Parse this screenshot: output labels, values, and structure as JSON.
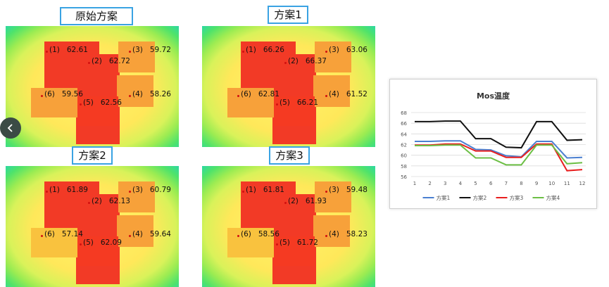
{
  "panels": [
    {
      "title": "原始方案",
      "labels": [
        {
          "id": "(1)",
          "value": "62.61"
        },
        {
          "id": "(2)",
          "value": "62.72"
        },
        {
          "id": "(3)",
          "value": "59.72"
        },
        {
          "id": "(4)",
          "value": "58.26"
        },
        {
          "id": "(5)",
          "value": "62.56"
        },
        {
          "id": "(6)",
          "value": "59.56"
        }
      ]
    },
    {
      "title": "方案1",
      "labels": [
        {
          "id": "(1)",
          "value": "66.26"
        },
        {
          "id": "(2)",
          "value": "66.37"
        },
        {
          "id": "(3)",
          "value": "63.06"
        },
        {
          "id": "(4)",
          "value": "61.52"
        },
        {
          "id": "(5)",
          "value": "66.21"
        },
        {
          "id": "(6)",
          "value": "62.81"
        }
      ]
    },
    {
      "title": "方案2",
      "labels": [
        {
          "id": "(1)",
          "value": "61.89"
        },
        {
          "id": "(2)",
          "value": "62.13"
        },
        {
          "id": "(3)",
          "value": "60.79"
        },
        {
          "id": "(4)",
          "value": "59.64"
        },
        {
          "id": "(5)",
          "value": "62.09"
        },
        {
          "id": "(6)",
          "value": "57.14"
        }
      ]
    },
    {
      "title": "方案3",
      "labels": [
        {
          "id": "(1)",
          "value": "61.81"
        },
        {
          "id": "(2)",
          "value": "61.93"
        },
        {
          "id": "(3)",
          "value": "59.48"
        },
        {
          "id": "(4)",
          "value": "58.23"
        },
        {
          "id": "(5)",
          "value": "61.72"
        },
        {
          "id": "(6)",
          "value": "58.56"
        }
      ]
    }
  ],
  "nav": {
    "icon": "chevron-left-icon"
  },
  "chart_data": {
    "type": "line",
    "title": "Mos温度",
    "x": [
      1,
      2,
      3,
      4,
      5,
      6,
      7,
      8,
      9,
      10,
      11,
      12
    ],
    "ylim": [
      56,
      68
    ],
    "yticks": [
      56,
      58,
      60,
      62,
      64,
      66,
      68
    ],
    "series": [
      {
        "name": "方案1",
        "color": "#4a7fd0",
        "values": [
          62.6,
          62.6,
          62.7,
          62.7,
          61.1,
          61.0,
          59.9,
          59.7,
          62.6,
          62.6,
          59.5,
          59.6
        ]
      },
      {
        "name": "方案2",
        "color": "#111111",
        "values": [
          66.3,
          66.3,
          66.4,
          66.4,
          63.1,
          63.1,
          61.5,
          61.4,
          66.3,
          66.3,
          62.8,
          62.9
        ]
      },
      {
        "name": "方案3",
        "color": "#e81e1e",
        "values": [
          61.9,
          61.9,
          62.1,
          62.1,
          60.8,
          60.8,
          59.6,
          59.6,
          62.1,
          62.1,
          57.1,
          57.3
        ]
      },
      {
        "name": "方案4",
        "color": "#6cbf45",
        "values": [
          61.8,
          61.8,
          61.9,
          61.9,
          59.5,
          59.5,
          58.2,
          58.2,
          61.9,
          61.9,
          58.4,
          58.6
        ]
      }
    ],
    "legend": "bottom"
  }
}
